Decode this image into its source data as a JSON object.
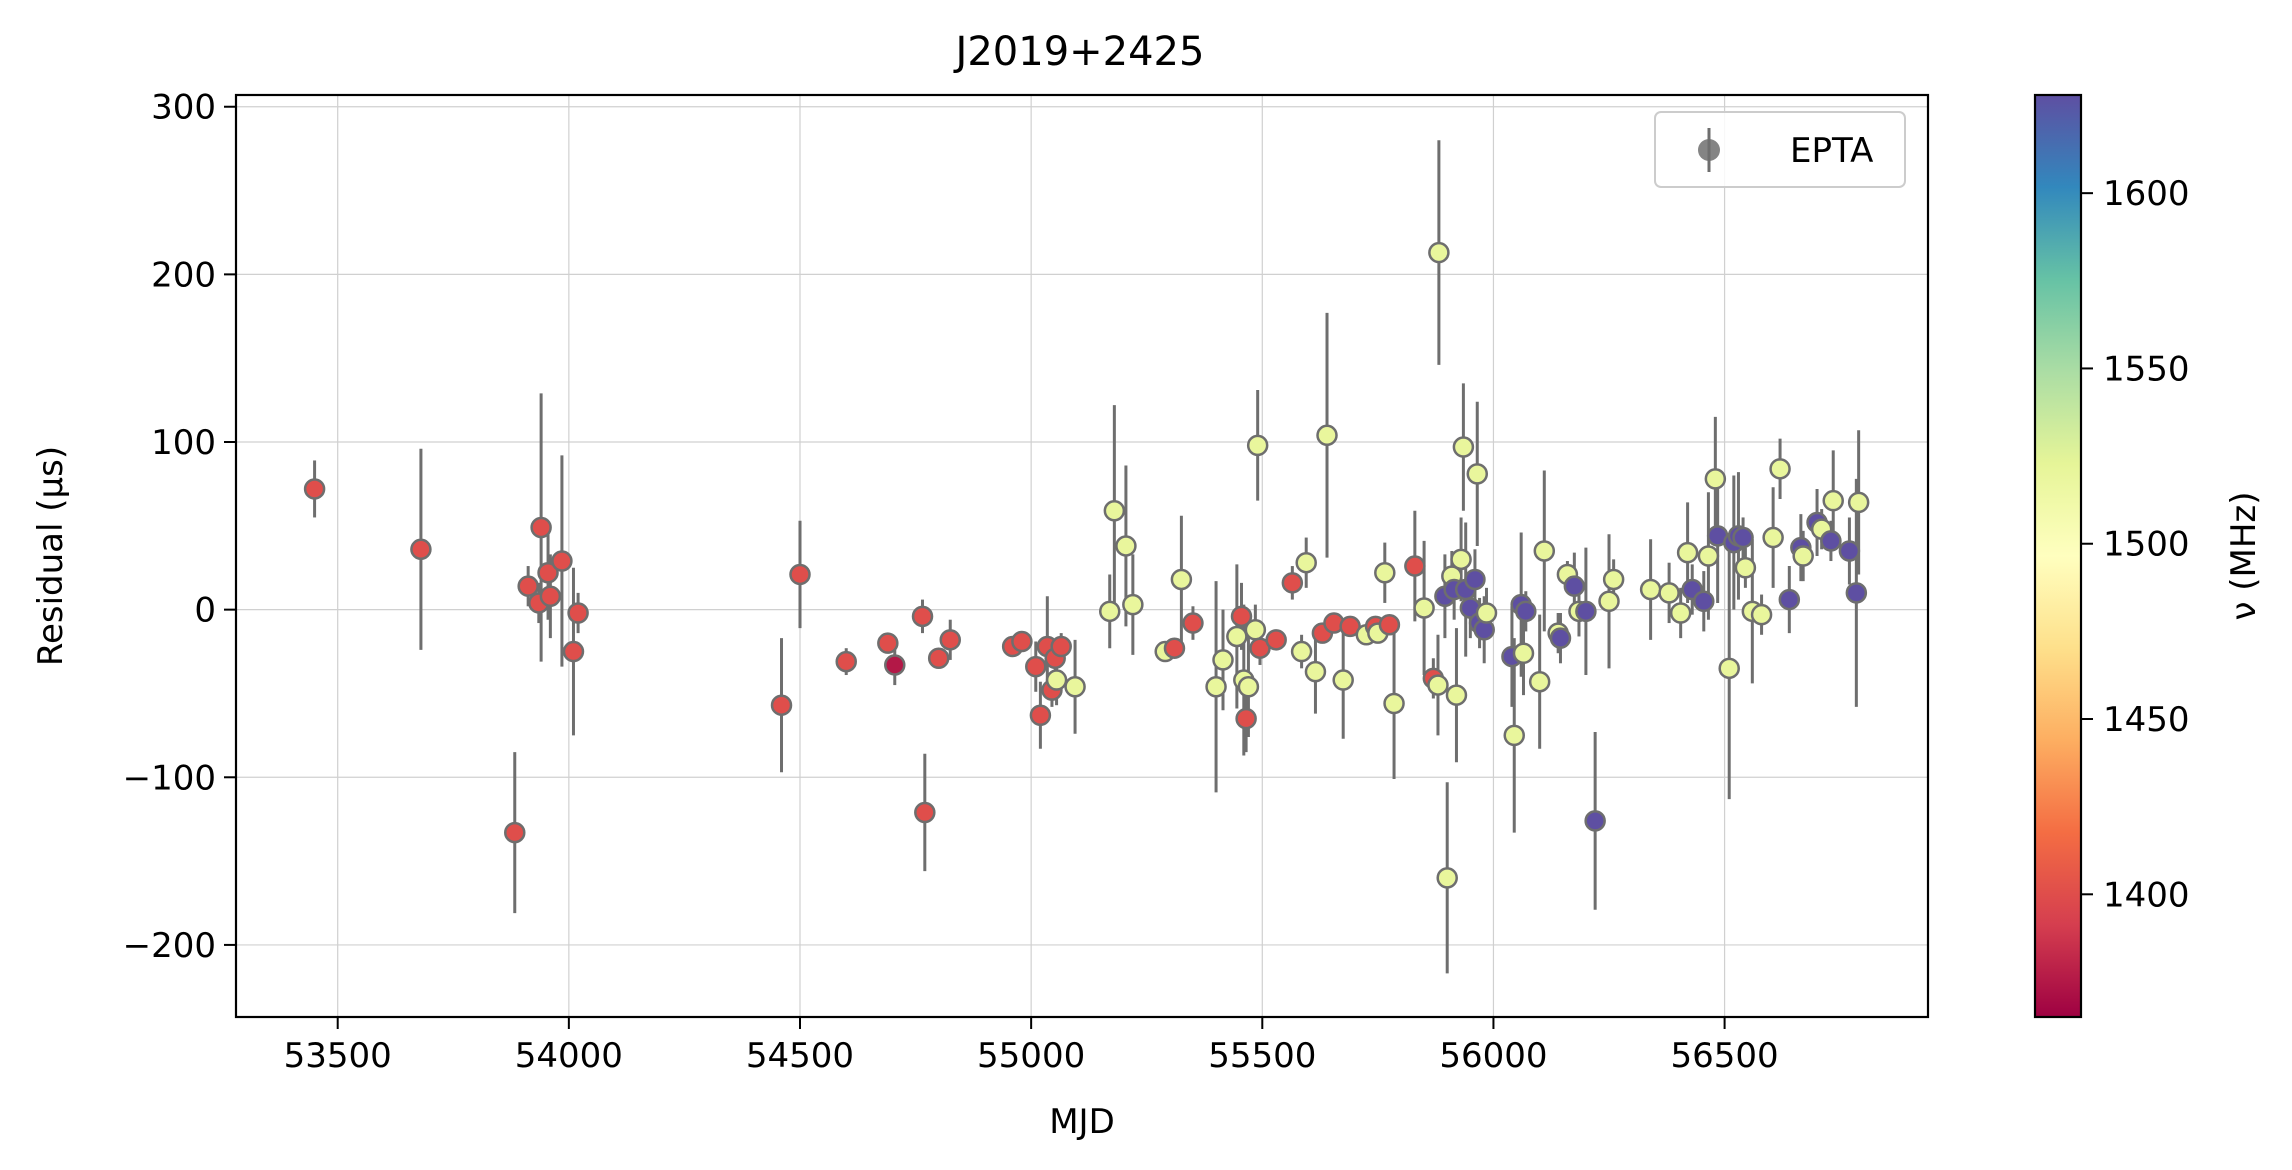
{
  "chart_data": {
    "type": "scatter",
    "title": "J2019+2425",
    "xlabel": "MJD",
    "ylabel": "Residual (μs)",
    "xlim": [
      53280,
      56940
    ],
    "ylim": [
      -243,
      307
    ],
    "xticks": [
      53500,
      54000,
      54500,
      55000,
      55500,
      56000,
      56500
    ],
    "yticks": [
      -200,
      -100,
      0,
      100,
      200,
      300
    ],
    "grid": true,
    "legend": {
      "placement": "top-right",
      "entries": [
        "EPTA"
      ]
    },
    "colorbar": {
      "label": "ν (MHz)",
      "range": [
        1365,
        1628
      ],
      "ticks": [
        1400,
        1450,
        1500,
        1550,
        1600
      ],
      "colormap": "Spectral"
    },
    "colors": {
      "marker_edge": "#6e6e6e",
      "errorbar": "#6e6e6e",
      "grid": "#d0d0d0"
    },
    "series": [
      {
        "name": "EPTA",
        "points": [
          {
            "x": 53450,
            "y": 72,
            "err": 17,
            "f": 1400
          },
          {
            "x": 53680,
            "y": 36,
            "err": 60,
            "f": 1400
          },
          {
            "x": 53883,
            "y": -133,
            "err": 48,
            "f": 1400
          },
          {
            "x": 53912,
            "y": 14,
            "err": 12,
            "f": 1400
          },
          {
            "x": 53935,
            "y": 4,
            "err": 12,
            "f": 1400
          },
          {
            "x": 53940,
            "y": 49,
            "err": 80,
            "f": 1400
          },
          {
            "x": 53955,
            "y": 22,
            "err": 28,
            "f": 1400
          },
          {
            "x": 53960,
            "y": 8,
            "err": 25,
            "f": 1400
          },
          {
            "x": 53985,
            "y": 29,
            "err": 63,
            "f": 1400
          },
          {
            "x": 54010,
            "y": -25,
            "err": 50,
            "f": 1400
          },
          {
            "x": 54020,
            "y": -2,
            "err": 12,
            "f": 1400
          },
          {
            "x": 54460,
            "y": -57,
            "err": 40,
            "f": 1400
          },
          {
            "x": 54500,
            "y": 21,
            "err": 32,
            "f": 1400
          },
          {
            "x": 54600,
            "y": -31,
            "err": 8,
            "f": 1400
          },
          {
            "x": 54690,
            "y": -20,
            "err": 6,
            "f": 1400
          },
          {
            "x": 54705,
            "y": -33,
            "err": 12,
            "f": 1375
          },
          {
            "x": 54765,
            "y": -4,
            "err": 10,
            "f": 1400
          },
          {
            "x": 54770,
            "y": -121,
            "err": 35,
            "f": 1400
          },
          {
            "x": 54800,
            "y": -29,
            "err": 6,
            "f": 1400
          },
          {
            "x": 54825,
            "y": -18,
            "err": 12,
            "f": 1400
          },
          {
            "x": 54960,
            "y": -22,
            "err": 6,
            "f": 1400
          },
          {
            "x": 54980,
            "y": -19,
            "err": 5,
            "f": 1400
          },
          {
            "x": 55010,
            "y": -34,
            "err": 15,
            "f": 1400
          },
          {
            "x": 55020,
            "y": -63,
            "err": 20,
            "f": 1400
          },
          {
            "x": 55035,
            "y": -22,
            "err": 30,
            "f": 1400
          },
          {
            "x": 55045,
            "y": -48,
            "err": 10,
            "f": 1400
          },
          {
            "x": 55052,
            "y": -29,
            "err": 8,
            "f": 1400
          },
          {
            "x": 55055,
            "y": -42,
            "err": 15,
            "f": 1520
          },
          {
            "x": 55065,
            "y": -22,
            "err": 8,
            "f": 1400
          },
          {
            "x": 55095,
            "y": -46,
            "err": 28,
            "f": 1520
          },
          {
            "x": 55170,
            "y": -1,
            "err": 22,
            "f": 1520
          },
          {
            "x": 55180,
            "y": 59,
            "err": 63,
            "f": 1520
          },
          {
            "x": 55205,
            "y": 38,
            "err": 48,
            "f": 1520
          },
          {
            "x": 55220,
            "y": 3,
            "err": 30,
            "f": 1520
          },
          {
            "x": 55290,
            "y": -25,
            "err": 5,
            "f": 1520
          },
          {
            "x": 55310,
            "y": -23,
            "err": 5,
            "f": 1400
          },
          {
            "x": 55325,
            "y": 18,
            "err": 38,
            "f": 1520
          },
          {
            "x": 55350,
            "y": -8,
            "err": 10,
            "f": 1400
          },
          {
            "x": 55400,
            "y": -46,
            "err": 63,
            "f": 1520
          },
          {
            "x": 55415,
            "y": -30,
            "err": 30,
            "f": 1520
          },
          {
            "x": 55445,
            "y": -16,
            "err": 43,
            "f": 1520
          },
          {
            "x": 55455,
            "y": -4,
            "err": 20,
            "f": 1400
          },
          {
            "x": 55460,
            "y": -42,
            "err": 45,
            "f": 1520
          },
          {
            "x": 55465,
            "y": -65,
            "err": 20,
            "f": 1400
          },
          {
            "x": 55470,
            "y": -46,
            "err": 30,
            "f": 1520
          },
          {
            "x": 55485,
            "y": -12,
            "err": 15,
            "f": 1520
          },
          {
            "x": 55490,
            "y": 98,
            "err": 33,
            "f": 1520
          },
          {
            "x": 55495,
            "y": -23,
            "err": 10,
            "f": 1400
          },
          {
            "x": 55530,
            "y": -18,
            "err": 5,
            "f": 1400
          },
          {
            "x": 55565,
            "y": 16,
            "err": 10,
            "f": 1400
          },
          {
            "x": 55585,
            "y": -25,
            "err": 10,
            "f": 1520
          },
          {
            "x": 55595,
            "y": 28,
            "err": 15,
            "f": 1520
          },
          {
            "x": 55615,
            "y": -37,
            "err": 25,
            "f": 1520
          },
          {
            "x": 55630,
            "y": -14,
            "err": 6,
            "f": 1400
          },
          {
            "x": 55640,
            "y": 104,
            "err": 73,
            "f": 1520
          },
          {
            "x": 55655,
            "y": -8,
            "err": 5,
            "f": 1400
          },
          {
            "x": 55675,
            "y": -42,
            "err": 35,
            "f": 1520
          },
          {
            "x": 55690,
            "y": -10,
            "err": 5,
            "f": 1400
          },
          {
            "x": 55725,
            "y": -15,
            "err": 5,
            "f": 1520
          },
          {
            "x": 55745,
            "y": -10,
            "err": 5,
            "f": 1400
          },
          {
            "x": 55750,
            "y": -14,
            "err": 5,
            "f": 1520
          },
          {
            "x": 55765,
            "y": 22,
            "err": 18,
            "f": 1520
          },
          {
            "x": 55775,
            "y": -9,
            "err": 5,
            "f": 1400
          },
          {
            "x": 55785,
            "y": -56,
            "err": 45,
            "f": 1520
          },
          {
            "x": 55830,
            "y": 26,
            "err": 33,
            "f": 1400
          },
          {
            "x": 55850,
            "y": 1,
            "err": 40,
            "f": 1520
          },
          {
            "x": 55870,
            "y": -41,
            "err": 12,
            "f": 1400
          },
          {
            "x": 55880,
            "y": -45,
            "err": 30,
            "f": 1520
          },
          {
            "x": 55882,
            "y": 213,
            "err": 67,
            "f": 1520
          },
          {
            "x": 55895,
            "y": 8,
            "err": 25,
            "f": 1628
          },
          {
            "x": 55900,
            "y": -160,
            "err": 57,
            "f": 1520
          },
          {
            "x": 55910,
            "y": 20,
            "err": 15,
            "f": 1520
          },
          {
            "x": 55915,
            "y": 12,
            "err": 18,
            "f": 1628
          },
          {
            "x": 55920,
            "y": -51,
            "err": 40,
            "f": 1520
          },
          {
            "x": 55930,
            "y": 30,
            "err": 25,
            "f": 1520
          },
          {
            "x": 55935,
            "y": 97,
            "err": 38,
            "f": 1520
          },
          {
            "x": 55940,
            "y": 12,
            "err": 40,
            "f": 1628
          },
          {
            "x": 55950,
            "y": 1,
            "err": 18,
            "f": 1628
          },
          {
            "x": 55960,
            "y": 18,
            "err": 18,
            "f": 1628
          },
          {
            "x": 55965,
            "y": 81,
            "err": 43,
            "f": 1520
          },
          {
            "x": 55970,
            "y": -8,
            "err": 15,
            "f": 1628
          },
          {
            "x": 55980,
            "y": -12,
            "err": 20,
            "f": 1628
          },
          {
            "x": 55985,
            "y": -2,
            "err": 15,
            "f": 1520
          },
          {
            "x": 56040,
            "y": -28,
            "err": 30,
            "f": 1628
          },
          {
            "x": 56045,
            "y": -75,
            "err": 58,
            "f": 1520
          },
          {
            "x": 56060,
            "y": 3,
            "err": 43,
            "f": 1628
          },
          {
            "x": 56065,
            "y": -26,
            "err": 25,
            "f": 1520
          },
          {
            "x": 56070,
            "y": -1,
            "err": 12,
            "f": 1628
          },
          {
            "x": 56100,
            "y": -43,
            "err": 40,
            "f": 1520
          },
          {
            "x": 56110,
            "y": 35,
            "err": 48,
            "f": 1520
          },
          {
            "x": 56140,
            "y": -14,
            "err": 12,
            "f": 1520
          },
          {
            "x": 56145,
            "y": -17,
            "err": 15,
            "f": 1628
          },
          {
            "x": 56160,
            "y": 21,
            "err": 8,
            "f": 1520
          },
          {
            "x": 56175,
            "y": 14,
            "err": 20,
            "f": 1628
          },
          {
            "x": 56185,
            "y": -1,
            "err": 15,
            "f": 1520
          },
          {
            "x": 56200,
            "y": -1,
            "err": 38,
            "f": 1628
          },
          {
            "x": 56220,
            "y": -126,
            "err": 53,
            "f": 1628
          },
          {
            "x": 56250,
            "y": 5,
            "err": 40,
            "f": 1520
          },
          {
            "x": 56260,
            "y": 18,
            "err": 12,
            "f": 1520
          },
          {
            "x": 56340,
            "y": 12,
            "err": 30,
            "f": 1520
          },
          {
            "x": 56380,
            "y": 10,
            "err": 18,
            "f": 1520
          },
          {
            "x": 56405,
            "y": -2,
            "err": 15,
            "f": 1520
          },
          {
            "x": 56420,
            "y": 34,
            "err": 30,
            "f": 1520
          },
          {
            "x": 56430,
            "y": 12,
            "err": 15,
            "f": 1628
          },
          {
            "x": 56455,
            "y": 5,
            "err": 18,
            "f": 1628
          },
          {
            "x": 56465,
            "y": 32,
            "err": 38,
            "f": 1520
          },
          {
            "x": 56480,
            "y": 78,
            "err": 37,
            "f": 1520
          },
          {
            "x": 56485,
            "y": 44,
            "err": 40,
            "f": 1628
          },
          {
            "x": 56510,
            "y": -35,
            "err": 78,
            "f": 1520
          },
          {
            "x": 56520,
            "y": 40,
            "err": 40,
            "f": 1628
          },
          {
            "x": 56530,
            "y": 44,
            "err": 38,
            "f": 1628
          },
          {
            "x": 56540,
            "y": 43,
            "err": 12,
            "f": 1628
          },
          {
            "x": 56545,
            "y": 25,
            "err": 12,
            "f": 1520
          },
          {
            "x": 56560,
            "y": -1,
            "err": 43,
            "f": 1520
          },
          {
            "x": 56580,
            "y": -3,
            "err": 12,
            "f": 1520
          },
          {
            "x": 56605,
            "y": 43,
            "err": 30,
            "f": 1520
          },
          {
            "x": 56620,
            "y": 84,
            "err": 18,
            "f": 1520
          },
          {
            "x": 56640,
            "y": 6,
            "err": 20,
            "f": 1628
          },
          {
            "x": 56665,
            "y": 37,
            "err": 20,
            "f": 1628
          },
          {
            "x": 56670,
            "y": 32,
            "err": 15,
            "f": 1520
          },
          {
            "x": 56700,
            "y": 52,
            "err": 20,
            "f": 1628
          },
          {
            "x": 56710,
            "y": 48,
            "err": 12,
            "f": 1520
          },
          {
            "x": 56730,
            "y": 41,
            "err": 12,
            "f": 1628
          },
          {
            "x": 56735,
            "y": 65,
            "err": 30,
            "f": 1520
          },
          {
            "x": 56770,
            "y": 35,
            "err": 20,
            "f": 1628
          },
          {
            "x": 56785,
            "y": 10,
            "err": 68,
            "f": 1628
          },
          {
            "x": 56790,
            "y": 64,
            "err": 43,
            "f": 1520
          }
        ]
      }
    ]
  }
}
